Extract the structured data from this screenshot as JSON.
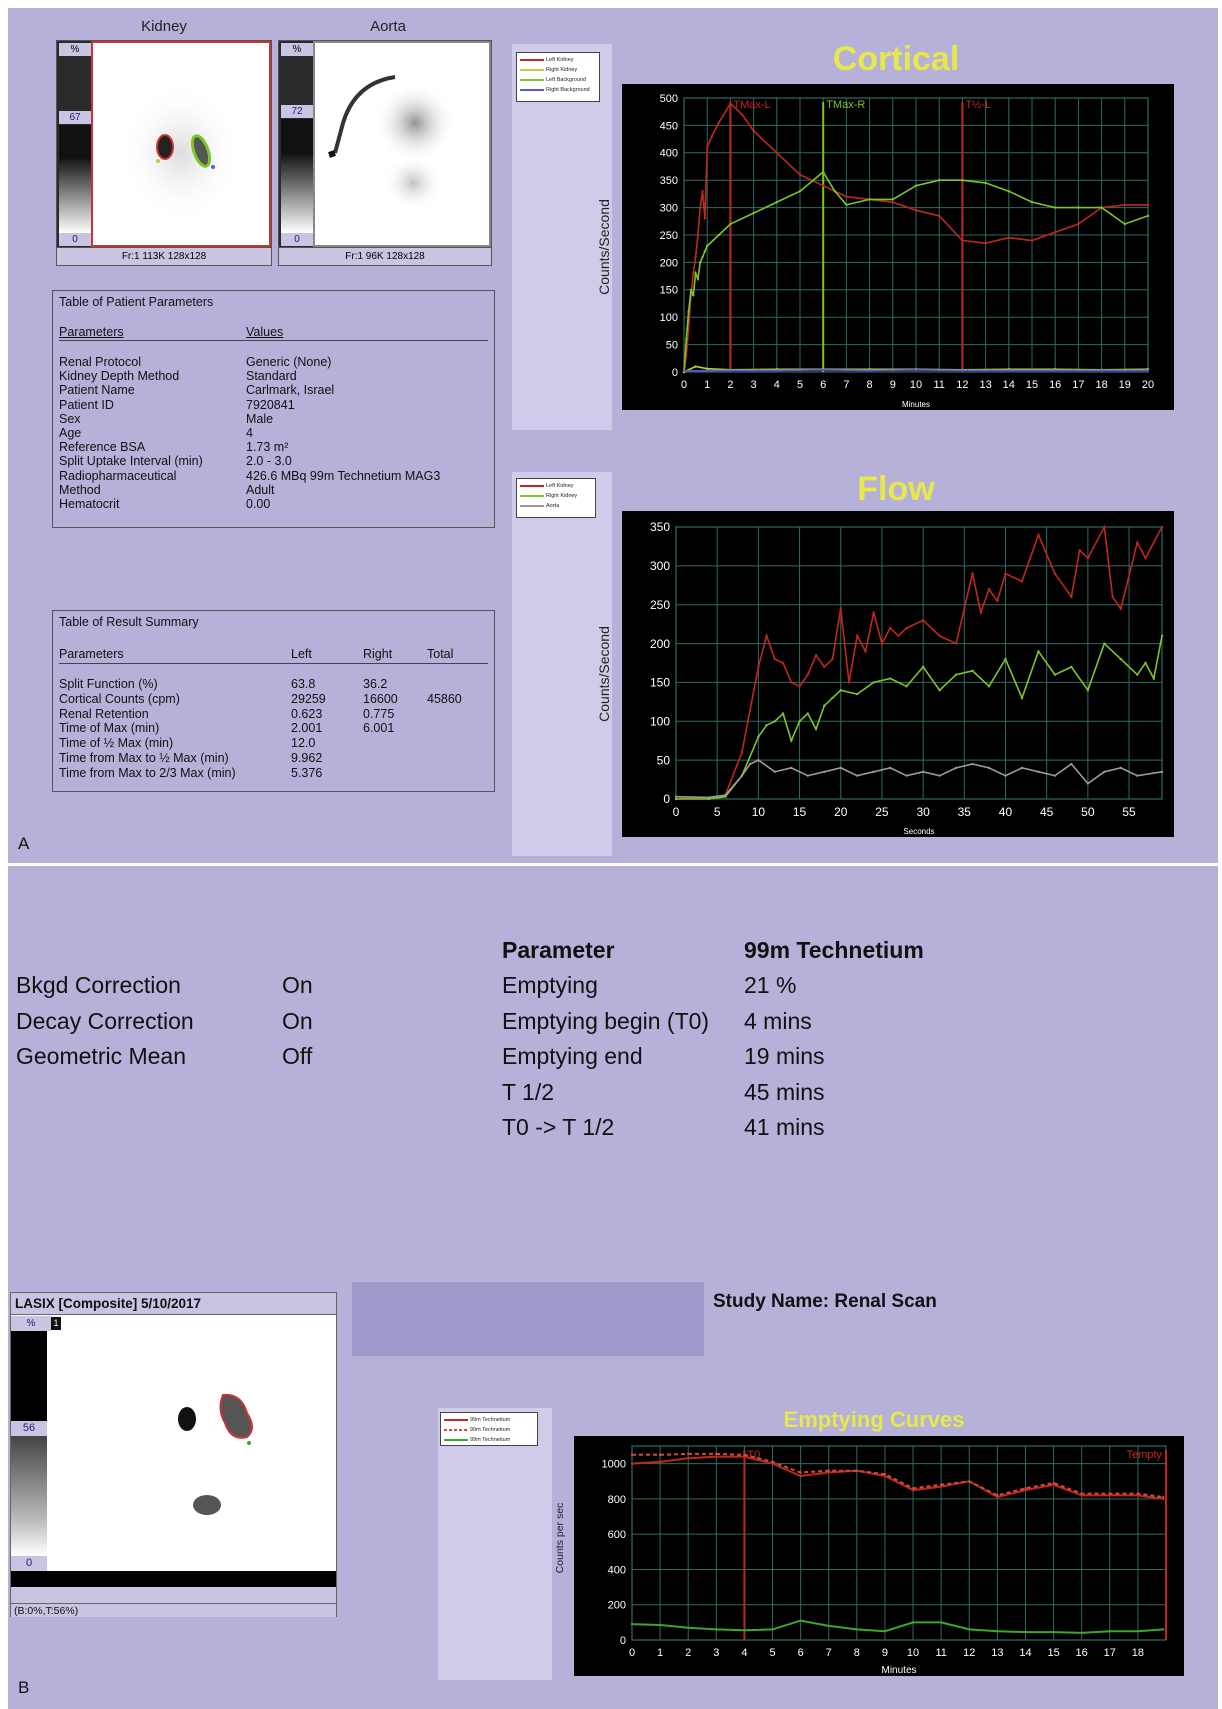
{
  "panel_labels": {
    "a": "A",
    "b": "B"
  },
  "kidney_image": {
    "title": "Kidney",
    "pct": "%",
    "max": "67",
    "min": "0",
    "footer": "Fr:1 113K 128x128"
  },
  "aorta_image": {
    "title": "Aorta",
    "pct": "%",
    "max": "72",
    "min": "0",
    "footer": "Fr:1 96K 128x128"
  },
  "patient_table": {
    "title": "Table of Patient Parameters",
    "col_param": "Parameters",
    "col_value": "Values",
    "rows": [
      {
        "p": "Renal Protocol",
        "v": "Generic (None)"
      },
      {
        "p": "Kidney Depth Method",
        "v": "Standard"
      },
      {
        "p": "Patient Name",
        "v": "Carlmark, Israel"
      },
      {
        "p": "Patient ID",
        "v": "7920841"
      },
      {
        "p": "Sex",
        "v": "Male"
      },
      {
        "p": "Age",
        "v": "4"
      },
      {
        "p": "Reference BSA",
        "v": "1.73 m²"
      },
      {
        "p": "Split Uptake Interval (min)",
        "v": "2.0 - 3.0"
      },
      {
        "p": "Radiopharmaceutical",
        "v": "426.6 MBq 99m Technetium MAG3"
      },
      {
        "p": "Method",
        "v": "Adult"
      },
      {
        "p": "Hematocrit",
        "v": "0.00"
      }
    ]
  },
  "result_table": {
    "title": "Table of Result Summary",
    "col_param": "Parameters",
    "col_left": "Left",
    "col_right": "Right",
    "col_total": "Total",
    "rows": [
      {
        "p": "Split Function (%)",
        "l": "63.8",
        "r": "36.2",
        "t": ""
      },
      {
        "p": "Cortical Counts (cpm)",
        "l": "29259",
        "r": "16600",
        "t": "45860"
      },
      {
        "p": "Renal Retention",
        "l": "0.623",
        "r": "0.775",
        "t": ""
      },
      {
        "p": "Time of Max (min)",
        "l": "2.001",
        "r": "6.001",
        "t": ""
      },
      {
        "p": "Time of ½ Max (min)",
        "l": "12.0",
        "r": "",
        "t": ""
      },
      {
        "p": "Time from Max to ½ Max (min)",
        "l": "9.962",
        "r": "",
        "t": ""
      },
      {
        "p": "Time from Max to 2/3 Max (min)",
        "l": "5.376",
        "r": "",
        "t": ""
      }
    ]
  },
  "cortical_legend": [
    "Left Kidney",
    "Right Kidney",
    "Left Background",
    "Right Background"
  ],
  "flow_legend": [
    "Left Kidney",
    "Right Kidney",
    "Aorta"
  ],
  "emptying_legend": [
    "99m Technetium",
    "99m Technetium",
    "99m Technetium"
  ],
  "colors": {
    "panel": "#b6b1d8",
    "chart_bg": "#000000",
    "grid": "#2f6b62",
    "left": "#c0281e",
    "right": "#7cc62a",
    "bkg": "#c8c846",
    "aorta": "#9a9a9a",
    "title": "#e8e84a"
  },
  "chart_data": [
    {
      "type": "line",
      "title": "Cortical",
      "xlabel": "Minutes",
      "ylabel": "Counts/Second",
      "xlim": [
        0,
        20
      ],
      "ylim": [
        0,
        500
      ],
      "xticks": [
        0,
        1,
        2,
        3,
        4,
        5,
        6,
        7,
        8,
        9,
        10,
        11,
        12,
        13,
        14,
        15,
        16,
        17,
        18,
        19,
        20
      ],
      "yticks": [
        0,
        50,
        100,
        150,
        200,
        250,
        300,
        350,
        400,
        450,
        500
      ],
      "grid": true,
      "annotations": [
        {
          "text": "TMax-L",
          "x": 2.0
        },
        {
          "text": "TMax-R",
          "x": 6.0
        },
        {
          "text": "T½-L",
          "x": 12.0
        }
      ],
      "series": [
        {
          "name": "Left Kidney",
          "color": "#c0281e",
          "x": [
            0,
            0.1,
            0.2,
            0.3,
            0.4,
            0.5,
            0.6,
            0.7,
            0.8,
            0.9,
            1.0,
            1.2,
            1.5,
            2.0,
            2.5,
            3,
            4,
            5,
            6,
            7,
            8,
            9,
            10,
            11,
            12,
            13,
            14,
            15,
            16,
            17,
            18,
            19,
            20
          ],
          "y": [
            0,
            30,
            80,
            140,
            180,
            210,
            250,
            300,
            330,
            280,
            410,
            430,
            455,
            490,
            470,
            440,
            400,
            360,
            340,
            320,
            315,
            310,
            295,
            285,
            240,
            235,
            245,
            240,
            255,
            270,
            300,
            305,
            305
          ]
        },
        {
          "name": "Right Kidney",
          "color": "#7cc62a",
          "x": [
            0,
            0.1,
            0.2,
            0.3,
            0.4,
            0.5,
            0.6,
            0.7,
            0.8,
            0.9,
            1.0,
            1.5,
            2,
            3,
            4,
            5,
            6,
            6.5,
            7,
            8,
            9,
            10,
            11,
            12,
            13,
            14,
            15,
            16,
            17,
            18,
            19,
            20
          ],
          "y": [
            0,
            60,
            110,
            150,
            140,
            180,
            170,
            200,
            210,
            220,
            230,
            250,
            270,
            290,
            310,
            330,
            365,
            330,
            305,
            315,
            315,
            340,
            350,
            350,
            345,
            330,
            310,
            300,
            300,
            300,
            270,
            285
          ]
        },
        {
          "name": "Left Background",
          "color": "#c8c846",
          "x": [
            0,
            0.5,
            1,
            2,
            4,
            6,
            8,
            10,
            12,
            14,
            16,
            18,
            20
          ],
          "y": [
            0,
            10,
            6,
            4,
            5,
            5,
            5,
            5,
            4,
            5,
            5,
            4,
            5
          ]
        },
        {
          "name": "Right Background",
          "color": "#5a5ad8",
          "x": [
            0,
            2,
            4,
            6,
            8,
            10,
            12,
            14,
            16,
            18,
            20
          ],
          "y": [
            2,
            3,
            3,
            4,
            3,
            4,
            3,
            3,
            3,
            3,
            3
          ]
        }
      ]
    },
    {
      "type": "line",
      "title": "Flow",
      "xlabel": "Seconds",
      "ylabel": "Counts/Second",
      "xlim": [
        0,
        59
      ],
      "ylim": [
        0,
        350
      ],
      "xticks": [
        0,
        5,
        10,
        15,
        20,
        25,
        30,
        35,
        40,
        45,
        50,
        55
      ],
      "yticks": [
        0,
        50,
        100,
        150,
        200,
        250,
        300,
        350
      ],
      "grid": true,
      "series": [
        {
          "name": "Left Kidney",
          "color": "#c0281e",
          "x": [
            0,
            2,
            4,
            6,
            8,
            10,
            11,
            12,
            13,
            14,
            15,
            16,
            17,
            18,
            19,
            20,
            21,
            22,
            23,
            24,
            25,
            26,
            27,
            28,
            30,
            32,
            34,
            36,
            37,
            38,
            39,
            40,
            42,
            44,
            46,
            48,
            49,
            50,
            52,
            53,
            54,
            56,
            57,
            59
          ],
          "y": [
            0,
            2,
            0,
            5,
            60,
            170,
            210,
            180,
            175,
            150,
            145,
            160,
            185,
            170,
            180,
            245,
            150,
            210,
            190,
            240,
            200,
            220,
            210,
            220,
            230,
            210,
            200,
            290,
            240,
            270,
            255,
            290,
            280,
            340,
            290,
            260,
            320,
            310,
            350,
            260,
            245,
            330,
            310,
            350
          ]
        },
        {
          "name": "Right Kidney",
          "color": "#7cc62a",
          "x": [
            0,
            4,
            6,
            8,
            10,
            11,
            12,
            13,
            14,
            15,
            16,
            17,
            18,
            19,
            20,
            22,
            24,
            26,
            28,
            30,
            32,
            34,
            36,
            38,
            40,
            42,
            44,
            46,
            48,
            50,
            52,
            54,
            56,
            57,
            58,
            59
          ],
          "y": [
            0,
            0,
            3,
            30,
            80,
            95,
            100,
            110,
            75,
            100,
            110,
            90,
            120,
            130,
            140,
            135,
            150,
            155,
            145,
            170,
            140,
            160,
            165,
            145,
            180,
            130,
            190,
            160,
            170,
            140,
            200,
            180,
            160,
            175,
            155,
            210
          ]
        },
        {
          "name": "Aorta",
          "color": "#9a9a9a",
          "x": [
            0,
            4,
            6,
            8,
            9,
            10,
            12,
            14,
            16,
            18,
            20,
            22,
            24,
            26,
            28,
            30,
            32,
            34,
            36,
            38,
            40,
            42,
            44,
            46,
            48,
            50,
            52,
            54,
            56,
            59
          ],
          "y": [
            3,
            2,
            5,
            30,
            45,
            50,
            35,
            40,
            30,
            35,
            40,
            30,
            35,
            40,
            30,
            35,
            30,
            40,
            45,
            40,
            30,
            40,
            35,
            30,
            45,
            20,
            35,
            40,
            30,
            35
          ]
        }
      ]
    },
    {
      "type": "line",
      "title": "Emptying Curves",
      "xlabel": "Minutes",
      "ylabel": "Counts per sec",
      "xlim": [
        0,
        19
      ],
      "ylim": [
        0,
        1100
      ],
      "xticks": [
        0,
        1,
        2,
        3,
        4,
        5,
        6,
        7,
        8,
        9,
        10,
        11,
        12,
        13,
        14,
        15,
        16,
        17,
        18
      ],
      "yticks": [
        0,
        200,
        400,
        600,
        800,
        1000
      ],
      "grid": true,
      "annotations": [
        {
          "text": "T0",
          "x": 4
        },
        {
          "text": "Tempty",
          "x": 19
        }
      ],
      "series": [
        {
          "name": "99m Technetium",
          "color": "#c0281e",
          "x": [
            0,
            1,
            2,
            3,
            4,
            5,
            6,
            7,
            8,
            9,
            10,
            11,
            12,
            13,
            14,
            15,
            16,
            17,
            18,
            18.9
          ],
          "y": [
            1000,
            1010,
            1030,
            1040,
            1040,
            1000,
            930,
            950,
            960,
            930,
            850,
            870,
            900,
            810,
            850,
            880,
            820,
            820,
            820,
            800
          ]
        },
        {
          "name": "99m Technetium",
          "color": "#d04a44",
          "x": [
            0,
            1,
            2,
            3,
            4,
            5,
            6,
            7,
            8,
            9,
            10,
            11,
            12,
            13,
            14,
            15,
            16,
            17,
            18,
            18.9
          ],
          "y": [
            1050,
            1050,
            1055,
            1055,
            1050,
            1010,
            950,
            960,
            960,
            940,
            860,
            880,
            900,
            820,
            860,
            890,
            830,
            830,
            830,
            810
          ]
        },
        {
          "name": "99m Technetium",
          "color": "#3ca82a",
          "x": [
            0,
            1,
            2,
            3,
            4,
            5,
            6,
            7,
            8,
            9,
            10,
            11,
            12,
            13,
            14,
            15,
            16,
            17,
            18,
            18.9
          ],
          "y": [
            90,
            85,
            70,
            60,
            55,
            60,
            110,
            80,
            60,
            50,
            100,
            100,
            60,
            50,
            45,
            45,
            40,
            50,
            50,
            60
          ]
        }
      ]
    }
  ],
  "settings": [
    {
      "label": "Bkgd Correction",
      "value": "On"
    },
    {
      "label": "Decay Correction",
      "value": "On"
    },
    {
      "label": "Geometric Mean",
      "value": "Off"
    }
  ],
  "param_table": {
    "col_param": "Parameter",
    "col_value": "99m Technetium",
    "rows": [
      {
        "p": "Emptying",
        "v": "21 %"
      },
      {
        "p": "Emptying begin (T0)",
        "v": "4 mins"
      },
      {
        "p": "Emptying end",
        "v": "19 mins"
      },
      {
        "p": "T 1/2",
        "v": "45 mins"
      },
      {
        "p": "T0 -> T 1/2",
        "v": "41 mins"
      }
    ]
  },
  "lasix_image": {
    "title": "LASIX [Composite] 5/10/2017",
    "pct": "%",
    "frame": "1",
    "max": "56",
    "min": "0",
    "footer": "(B:0%,T:56%)"
  },
  "study_name": "Study Name: Renal Scan"
}
